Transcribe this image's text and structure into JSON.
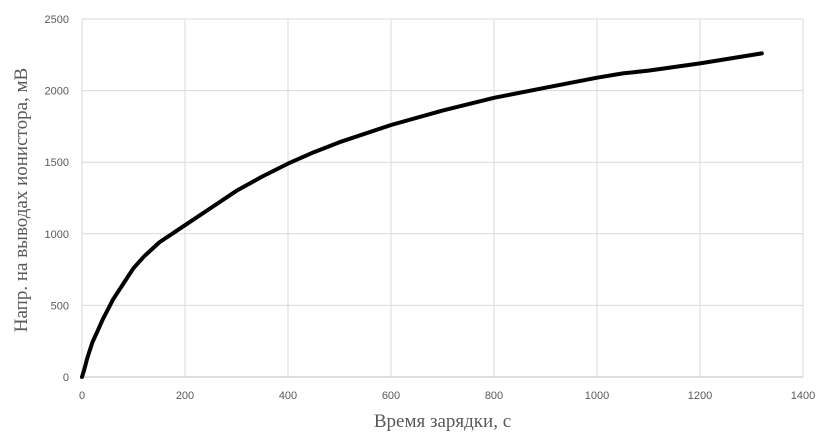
{
  "chart_data": {
    "type": "line",
    "xlabel": "Время зарядки, с",
    "ylabel": "Напр. на выводах ионистора, мВ",
    "xlim": [
      0,
      1400
    ],
    "ylim": [
      0,
      2500
    ],
    "x_ticks": [
      0,
      200,
      400,
      600,
      800,
      1000,
      1200,
      1400
    ],
    "y_ticks": [
      0,
      500,
      1000,
      1500,
      2000,
      2500
    ],
    "grid": true,
    "series": [
      {
        "color": "#000000",
        "x": [
          0,
          5,
          10,
          20,
          30,
          40,
          50,
          60,
          80,
          100,
          120,
          150,
          200,
          250,
          300,
          350,
          400,
          450,
          500,
          600,
          700,
          800,
          900,
          1000,
          1050,
          1100,
          1200,
          1320
        ],
        "y": [
          0,
          60,
          130,
          240,
          320,
          400,
          470,
          540,
          650,
          760,
          840,
          940,
          1060,
          1180,
          1300,
          1400,
          1490,
          1570,
          1640,
          1760,
          1860,
          1950,
          2020,
          2090,
          2120,
          2140,
          2190,
          2260
        ]
      }
    ]
  }
}
